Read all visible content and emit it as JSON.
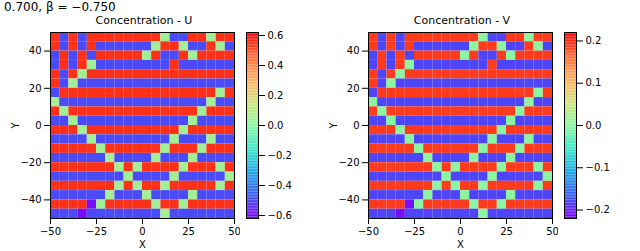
{
  "suptitle": "0.700, β = −0.750",
  "chart_data": [
    {
      "type": "heatmap",
      "title": "Concentration - U",
      "xlabel": "X",
      "ylabel": "Y",
      "xlim": [
        -50,
        50
      ],
      "ylim": [
        -50,
        50
      ],
      "xticks": [
        {
          "value": -50,
          "label": "−50"
        },
        {
          "value": -25,
          "label": "−25"
        },
        0,
        25,
        50
      ],
      "yticks": [
        {
          "value": -40,
          "label": "−40"
        },
        {
          "value": -20,
          "label": "−20"
        },
        0,
        20,
        40
      ],
      "x": [
        -47.5,
        -42.5,
        -37.5,
        -32.5,
        -27.5,
        -22.5,
        -17.5,
        -12.5,
        -7.5,
        -2.5,
        2.5,
        7.5,
        12.5,
        17.5,
        22.5,
        27.5,
        32.5,
        37.5,
        42.5,
        47.5
      ],
      "y": [
        47.5,
        42.5,
        37.5,
        32.5,
        27.5,
        22.5,
        17.5,
        12.5,
        7.5,
        2.5,
        -2.5,
        -7.5,
        -12.5,
        -17.5,
        -22.5,
        -27.5,
        -32.5,
        -37.5,
        -42.5,
        -47.5
      ],
      "values": [
        [
          0.55,
          -0.5,
          0.55,
          -0.5,
          0.55,
          0.55,
          0.55,
          0.55,
          0.55,
          0.55,
          0.55,
          0.55,
          0.05,
          -0.5,
          -0.5,
          0.55,
          0.55,
          0.05,
          0.55,
          0.55
        ],
        [
          0.55,
          -0.5,
          0.55,
          -0.5,
          0.55,
          -0.5,
          -0.5,
          -0.5,
          -0.5,
          -0.5,
          -0.5,
          0.05,
          0.55,
          0.55,
          0.05,
          -0.5,
          -0.5,
          0.55,
          0.05,
          -0.5
        ],
        [
          -0.5,
          0.55,
          -0.5,
          0.55,
          -0.5,
          0.55,
          0.55,
          0.55,
          0.55,
          0.55,
          0.05,
          0.55,
          -0.5,
          -0.5,
          0.55,
          0.05,
          0.55,
          0.55,
          0.55,
          0.55
        ],
        [
          -0.5,
          0.55,
          -0.5,
          0.55,
          0.05,
          -0.5,
          -0.5,
          -0.5,
          -0.5,
          -0.5,
          -0.5,
          -0.5,
          -0.5,
          0.55,
          -0.5,
          -0.5,
          -0.5,
          -0.5,
          -0.5,
          -0.5
        ],
        [
          0.55,
          -0.5,
          0.55,
          0.05,
          0.55,
          0.55,
          0.55,
          0.55,
          0.55,
          0.55,
          0.55,
          0.55,
          0.55,
          0.55,
          0.55,
          0.55,
          0.55,
          0.55,
          0.55,
          0.55
        ],
        [
          0.55,
          -0.5,
          0.05,
          -0.5,
          -0.5,
          -0.5,
          -0.5,
          -0.5,
          -0.5,
          -0.5,
          -0.5,
          -0.5,
          -0.5,
          -0.5,
          -0.5,
          -0.5,
          -0.5,
          -0.5,
          -0.5,
          -0.5
        ],
        [
          -0.5,
          0.55,
          0.55,
          0.55,
          0.55,
          0.55,
          0.55,
          0.55,
          0.55,
          0.55,
          0.55,
          0.55,
          0.55,
          0.55,
          0.55,
          0.55,
          0.55,
          0.55,
          0.05,
          0.55
        ],
        [
          0.05,
          -0.5,
          -0.5,
          -0.5,
          -0.5,
          -0.5,
          -0.5,
          -0.5,
          -0.5,
          -0.5,
          -0.5,
          -0.5,
          -0.5,
          -0.5,
          -0.5,
          -0.5,
          -0.5,
          0.05,
          -0.5,
          -0.5
        ],
        [
          0.55,
          0.05,
          0.55,
          0.55,
          0.55,
          0.55,
          0.55,
          0.55,
          0.55,
          0.55,
          0.55,
          0.55,
          0.55,
          0.55,
          0.55,
          0.55,
          0.05,
          0.55,
          0.55,
          0.55
        ],
        [
          -0.5,
          -0.5,
          0.05,
          -0.5,
          -0.5,
          -0.5,
          -0.5,
          -0.5,
          -0.5,
          -0.5,
          -0.5,
          -0.5,
          -0.5,
          -0.5,
          -0.5,
          0.05,
          -0.5,
          -0.5,
          -0.5,
          -0.5
        ],
        [
          0.55,
          0.55,
          0.55,
          0.05,
          0.55,
          0.55,
          0.55,
          0.55,
          0.55,
          0.55,
          0.55,
          0.55,
          0.55,
          0.55,
          0.05,
          0.55,
          0.55,
          0.55,
          0.55,
          0.55
        ],
        [
          -0.5,
          -0.5,
          -0.5,
          -0.5,
          0.05,
          -0.5,
          -0.5,
          -0.5,
          -0.5,
          -0.5,
          -0.5,
          -0.5,
          -0.5,
          0.05,
          -0.5,
          -0.5,
          -0.5,
          0.05,
          -0.5,
          -0.5
        ],
        [
          0.55,
          0.55,
          0.55,
          0.55,
          0.55,
          0.05,
          0.55,
          0.55,
          0.55,
          0.55,
          0.55,
          0.55,
          0.05,
          0.55,
          0.55,
          0.55,
          0.05,
          0.55,
          0.55,
          0.55
        ],
        [
          -0.5,
          -0.5,
          -0.5,
          -0.5,
          -0.5,
          -0.5,
          0.05,
          -0.5,
          -0.5,
          -0.5,
          -0.5,
          0.05,
          -0.5,
          -0.5,
          -0.5,
          0.05,
          -0.5,
          -0.5,
          -0.5,
          -0.5
        ],
        [
          0.55,
          0.55,
          0.55,
          0.55,
          0.55,
          0.55,
          0.55,
          0.05,
          0.55,
          0.05,
          0.55,
          0.55,
          0.55,
          0.55,
          0.05,
          0.55,
          0.55,
          0.55,
          0.05,
          0.55
        ],
        [
          -0.5,
          -0.5,
          -0.5,
          -0.5,
          -0.5,
          -0.5,
          -0.5,
          -0.5,
          0.05,
          -0.5,
          -0.5,
          -0.5,
          -0.5,
          0.05,
          -0.5,
          -0.5,
          -0.5,
          -0.5,
          -0.5,
          0.05
        ],
        [
          0.55,
          0.55,
          0.55,
          0.55,
          0.55,
          0.55,
          0.55,
          0.05,
          0.55,
          0.05,
          0.55,
          0.55,
          0.05,
          0.55,
          0.55,
          0.55,
          0.55,
          0.55,
          0.05,
          0.55
        ],
        [
          -0.5,
          -0.5,
          -0.5,
          -0.5,
          -0.5,
          -0.5,
          0.05,
          -0.5,
          -0.5,
          -0.5,
          0.05,
          -0.5,
          -0.5,
          -0.5,
          -0.5,
          0.05,
          -0.5,
          -0.5,
          -0.5,
          -0.5
        ],
        [
          0.55,
          0.55,
          0.55,
          0.55,
          -0.6,
          0.05,
          0.55,
          0.55,
          0.55,
          0.55,
          0.55,
          0.05,
          0.55,
          0.55,
          0.05,
          0.55,
          0.55,
          0.55,
          0.55,
          0.55
        ],
        [
          -0.5,
          -0.5,
          -0.5,
          -0.6,
          -0.5,
          -0.5,
          -0.5,
          -0.5,
          -0.5,
          -0.5,
          -0.5,
          -0.5,
          0.05,
          -0.5,
          -0.5,
          -0.5,
          -0.5,
          -0.5,
          -0.5,
          -0.5
        ]
      ],
      "colorbar": {
        "range": [
          -0.62,
          0.62
        ],
        "ticks": [
          {
            "value": -0.6,
            "label": "−0.6"
          },
          {
            "value": -0.4,
            "label": "−0.4"
          },
          {
            "value": -0.2,
            "label": "−0.2"
          },
          {
            "value": 0,
            "label": "0.0"
          },
          0.2,
          0.4,
          0.6
        ]
      }
    },
    {
      "type": "heatmap",
      "title": "Concentration - V",
      "xlabel": "X",
      "ylabel": "Y",
      "xlim": [
        -50,
        50
      ],
      "ylim": [
        -50,
        50
      ],
      "xticks": [
        {
          "value": -50,
          "label": "−50"
        },
        {
          "value": -25,
          "label": "−25"
        },
        0,
        25,
        50
      ],
      "yticks": [
        {
          "value": -40,
          "label": "−40"
        },
        {
          "value": -20,
          "label": "−20"
        },
        0,
        20,
        40
      ],
      "x": [
        -47.5,
        -42.5,
        -37.5,
        -32.5,
        -27.5,
        -22.5,
        -17.5,
        -12.5,
        -7.5,
        -2.5,
        2.5,
        7.5,
        12.5,
        17.5,
        22.5,
        27.5,
        32.5,
        37.5,
        42.5,
        47.5
      ],
      "y": [
        47.5,
        42.5,
        37.5,
        32.5,
        27.5,
        22.5,
        17.5,
        12.5,
        7.5,
        2.5,
        -2.5,
        -7.5,
        -12.5,
        -17.5,
        -22.5,
        -27.5,
        -32.5,
        -37.5,
        -42.5,
        -47.5
      ],
      "values": [
        [
          0.19,
          -0.18,
          0.19,
          -0.18,
          0.19,
          0.19,
          0.19,
          0.19,
          0.19,
          0.19,
          0.19,
          0.19,
          0,
          -0.18,
          -0.18,
          0.19,
          0.19,
          0,
          0.19,
          0.19
        ],
        [
          0.19,
          -0.18,
          0.19,
          -0.18,
          0.19,
          -0.18,
          -0.18,
          -0.18,
          -0.18,
          -0.18,
          -0.18,
          0,
          0.19,
          0.19,
          0,
          -0.18,
          -0.18,
          0.19,
          0,
          -0.18
        ],
        [
          -0.18,
          0.19,
          -0.18,
          0.19,
          -0.18,
          0.19,
          0.19,
          0.19,
          0.19,
          0.19,
          0,
          0.19,
          -0.18,
          -0.18,
          0.19,
          0,
          0.19,
          0.19,
          0.19,
          0.19
        ],
        [
          -0.18,
          0.19,
          -0.18,
          0.19,
          0,
          -0.18,
          -0.18,
          -0.18,
          -0.18,
          -0.18,
          -0.18,
          -0.18,
          -0.18,
          0.19,
          -0.18,
          -0.18,
          -0.18,
          -0.18,
          -0.18,
          -0.18
        ],
        [
          0.19,
          -0.18,
          0.19,
          0,
          0.19,
          0.19,
          0.19,
          0.19,
          0.19,
          0.19,
          0.19,
          0.19,
          0.19,
          0.19,
          0.19,
          0.19,
          0.19,
          0.19,
          0.19,
          0.19
        ],
        [
          0.19,
          -0.18,
          0,
          -0.18,
          -0.18,
          -0.18,
          -0.18,
          -0.18,
          -0.18,
          -0.18,
          -0.18,
          -0.18,
          -0.18,
          -0.18,
          -0.18,
          -0.18,
          -0.18,
          -0.18,
          -0.18,
          -0.18
        ],
        [
          -0.18,
          0.19,
          0.19,
          0.19,
          0.19,
          0.19,
          0.19,
          0.19,
          0.19,
          0.19,
          0.19,
          0.19,
          0.19,
          0.19,
          0.19,
          0.19,
          0.19,
          0.19,
          0,
          0.19
        ],
        [
          0,
          -0.18,
          -0.18,
          -0.18,
          -0.18,
          -0.18,
          -0.18,
          -0.18,
          -0.18,
          -0.18,
          -0.18,
          -0.18,
          -0.18,
          -0.18,
          -0.18,
          -0.18,
          -0.18,
          0,
          -0.18,
          -0.18
        ],
        [
          0.19,
          0,
          0.19,
          0.19,
          0.19,
          0.19,
          0.19,
          0.19,
          0.19,
          0.19,
          0.19,
          0.19,
          0.19,
          0.19,
          0.19,
          0.19,
          0,
          0.19,
          0.19,
          0.19
        ],
        [
          -0.18,
          -0.18,
          0,
          -0.18,
          -0.18,
          -0.18,
          -0.18,
          -0.18,
          -0.18,
          -0.18,
          -0.18,
          -0.18,
          -0.18,
          -0.18,
          -0.18,
          0,
          -0.18,
          -0.18,
          -0.18,
          -0.18
        ],
        [
          0.19,
          0.19,
          0.19,
          0,
          0.19,
          0.19,
          0.19,
          0.19,
          0.19,
          0.19,
          0.19,
          0.19,
          0.19,
          0.19,
          0,
          0.19,
          0.19,
          0.19,
          0.19,
          0.19
        ],
        [
          -0.18,
          -0.18,
          -0.18,
          -0.18,
          0,
          -0.18,
          -0.18,
          -0.18,
          -0.18,
          -0.18,
          -0.18,
          -0.18,
          -0.18,
          0,
          -0.18,
          -0.18,
          -0.18,
          0,
          -0.18,
          -0.18
        ],
        [
          0.19,
          0.19,
          0.19,
          0.19,
          0.19,
          0,
          0.19,
          0.19,
          0.19,
          0.19,
          0.19,
          0.19,
          0,
          0.19,
          0.19,
          0.19,
          0,
          0.19,
          0.19,
          0.19
        ],
        [
          -0.18,
          -0.18,
          -0.18,
          -0.18,
          -0.18,
          -0.18,
          0,
          -0.18,
          -0.18,
          -0.18,
          -0.18,
          0,
          -0.18,
          -0.18,
          -0.18,
          0,
          -0.18,
          -0.18,
          -0.18,
          -0.18
        ],
        [
          0.19,
          0.19,
          0.19,
          0.19,
          0.19,
          0.19,
          0.19,
          0,
          0.19,
          0,
          0.19,
          0.19,
          0.19,
          0.19,
          0,
          0.19,
          0.19,
          0.19,
          0,
          0.19
        ],
        [
          -0.18,
          -0.18,
          -0.18,
          -0.18,
          -0.18,
          -0.18,
          -0.18,
          -0.18,
          0,
          -0.18,
          -0.18,
          -0.18,
          -0.18,
          0,
          -0.18,
          -0.18,
          -0.18,
          -0.18,
          -0.18,
          0
        ],
        [
          0.19,
          0.19,
          0.19,
          0.19,
          0.19,
          0.19,
          0.19,
          0,
          0.19,
          0,
          0.19,
          0.19,
          0,
          0.19,
          0.19,
          0.19,
          0.19,
          0.19,
          0,
          0.19
        ],
        [
          -0.18,
          -0.18,
          -0.18,
          -0.18,
          -0.18,
          -0.18,
          0,
          -0.18,
          -0.18,
          -0.18,
          0,
          -0.18,
          -0.18,
          -0.18,
          -0.18,
          0,
          -0.18,
          -0.18,
          -0.18,
          -0.18
        ],
        [
          0.19,
          0.19,
          0.19,
          0.19,
          -0.21,
          0,
          0.19,
          0.19,
          0.19,
          0.19,
          0.19,
          0,
          0.19,
          0.19,
          0,
          0.19,
          0.19,
          0.19,
          0.19,
          0.19
        ],
        [
          -0.18,
          -0.18,
          -0.18,
          -0.21,
          -0.18,
          -0.18,
          -0.18,
          -0.18,
          -0.18,
          -0.18,
          -0.18,
          -0.18,
          0,
          -0.18,
          -0.18,
          -0.18,
          -0.18,
          -0.18,
          -0.18,
          -0.18
        ]
      ],
      "colorbar": {
        "range": [
          -0.22,
          0.22
        ],
        "ticks": [
          {
            "value": -0.2,
            "label": "−0.2"
          },
          {
            "value": -0.1,
            "label": "−0.1"
          },
          {
            "value": 0,
            "label": "0.0"
          },
          0.1,
          0.2
        ]
      }
    }
  ]
}
